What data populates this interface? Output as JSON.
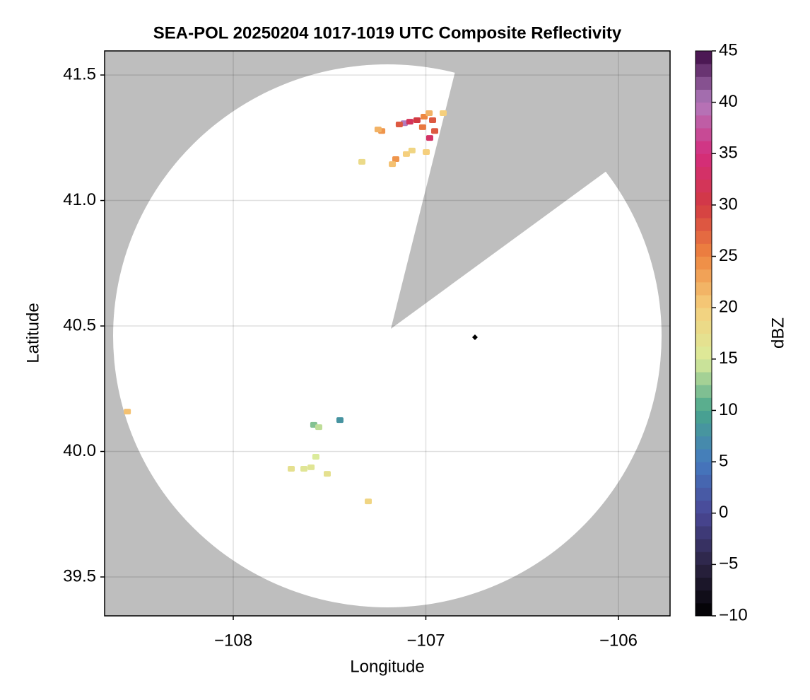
{
  "chart_data": {
    "type": "radar-map",
    "title": "SEA-POL 20250204 1017-1019 UTC Composite Reflectivity",
    "xlabel": "Longitude",
    "ylabel": "Latitude",
    "xlim": [
      -108.668,
      -105.732
    ],
    "ylim": [
      39.345,
      41.596
    ],
    "xticks": [
      {
        "value": -108,
        "label": "−108"
      },
      {
        "value": -107,
        "label": "−107"
      },
      {
        "value": -106,
        "label": "−106"
      }
    ],
    "yticks": [
      39.5,
      {
        "value": 40.0,
        "label": "40.0"
      },
      40.5,
      {
        "value": 41.0,
        "label": "41.0"
      },
      41.5
    ],
    "grid": true,
    "echoes": {
      "lon": [
        -107.112,
        -107.083,
        -107.138,
        -107.046,
        -107.009,
        -106.983,
        -106.965,
        -106.954,
        -106.98,
        -107.017,
        -107.229,
        -107.248,
        -107.156,
        -107.174,
        -107.101,
        -107.072,
        -106.998,
        -106.91,
        -107.332,
        -108.55,
        -107.582,
        -107.556,
        -107.446,
        -107.699,
        -107.633,
        -107.596,
        -107.512,
        -107.571,
        -107.299
      ],
      "lat": [
        41.308,
        41.314,
        41.303,
        41.32,
        41.334,
        41.348,
        41.32,
        41.277,
        41.249,
        41.292,
        41.277,
        41.283,
        41.165,
        41.145,
        41.185,
        41.199,
        41.193,
        41.348,
        41.154,
        40.159,
        40.106,
        40.097,
        40.125,
        39.931,
        39.931,
        39.937,
        39.911,
        39.979,
        39.801
      ],
      "dbz": [
        40,
        32,
        28,
        30,
        25,
        22,
        28,
        28,
        33,
        26,
        24,
        22,
        24,
        21,
        20,
        19,
        20,
        20,
        18,
        21,
        12,
        14,
        8,
        17,
        16,
        16,
        17,
        15,
        19
      ]
    },
    "marker": {
      "lon": -106.745,
      "lat": 40.455,
      "color": "#000000"
    },
    "colorbar": {
      "label": "dBZ",
      "clim": [
        -10,
        45
      ],
      "ticks": [
        {
          "value": -10,
          "label": "−10"
        },
        {
          "value": -5,
          "label": "−5"
        },
        0,
        5,
        10,
        15,
        20,
        25,
        30,
        35,
        40,
        45
      ],
      "colors": [
        "#000000",
        "#2b2342",
        "#4a4796",
        "#4479bf",
        "#48a58c",
        "#dbeb9b",
        "#f5cf7d",
        "#ee8740",
        "#d23a42",
        "#d42c7d",
        "#b27bbd",
        "#3d0a45"
      ]
    }
  }
}
